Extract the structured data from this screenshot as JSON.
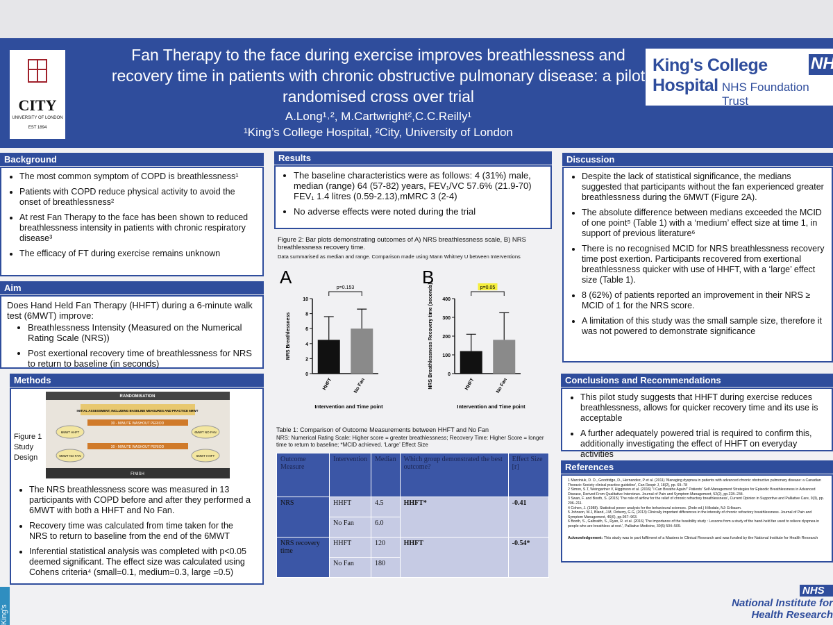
{
  "header": {
    "title": "Fan Therapy to the face during exercise improves breathlessness and recovery time in patients with chronic obstructive pulmonary disease: a pilot randomised cross over trial",
    "authors": "A.Long¹˒², M.Cartwright²,C.C.Reilly¹",
    "affiliations": "¹King’s College Hospital, ²City, University of London"
  },
  "logos": {
    "city": "CITY",
    "city_sub": "UNIVERSITY OF LONDON",
    "city_est": "EST 1894",
    "kch": "King's College Hospital",
    "nhs": "NHS",
    "kch_trust": "NHS Foundation Trust",
    "nihr_nhs": "NHS",
    "nihr": "National Institute for Health Research",
    "side": "King's"
  },
  "background": {
    "heading": "Background",
    "bullets": [
      "The most common symptom of COPD is breathlessness¹",
      "Patients with COPD reduce physical activity to avoid the onset of breathlessness²",
      "At rest Fan Therapy to the face has been shown to reduced breathlessness intensity in patients with chronic respiratory disease³",
      "The efficacy of FT during exercise remains unknown"
    ]
  },
  "aim": {
    "heading": "Aim",
    "question": "Does Hand Held Fan Therapy (HHFT) during a 6-minute walk test (6MWT) improve:",
    "bullets": [
      "Breathlessness Intensity (Measured on the Numerical Rating Scale (NRS))",
      "Post exertional recovery time of breathlessness for NRS to return to baseline (in seconds)"
    ]
  },
  "methods": {
    "heading": "Methods",
    "figure_label": "Figure 1 Study Design",
    "diagram": {
      "top": "RANDOMISATION",
      "initial": "INITIAL ASSESSMENT, INCLUDING BASELINE MEASURES AND PRACTICE 6MWT",
      "washout_1": "30 - MINUTE WASHOUT PERIOD",
      "washout_2": "30 - MINUTE WASHOUT PERIOD",
      "finish": "FINISH",
      "left_top": "6MWT HHFT",
      "left_bottom": "6MWT NO FAN",
      "right_top": "6MWT NO FAN",
      "right_bottom": "6MWT HHFT"
    },
    "bullets": [
      "The NRS breathlessness score was measured in 13 participants with COPD before and after they performed a 6MWT with both a HHFT and No Fan.",
      "Recovery time was calculated from time taken for the NRS to return to baseline from the end of the 6MWT",
      "Inferential statistical analysis was completed with  p<0.05 deemed significant.  The effect size was calculated using Cohens criteria⁴ (small=0.1, medium=0.3, large =0.5)"
    ]
  },
  "results": {
    "heading": "Results",
    "bullets": [
      "The baseline characteristics were as follows: 4 (31%) male, median (range) 64 (57-82) years, FEV₁/VC 57.6% (21.9-70) FEV₁ 1.4 litres (0.59-2.13),mMRC 3 (2-4)",
      "No adverse effects were noted during the trial"
    ]
  },
  "figure2": {
    "caption": "Figure 2: Bar plots demonstrating outcomes of A) NRS breathlessness scale, B) NRS breathlessness recovery time.",
    "note": "Data summarised as median and range. Comparison made using Mann Whitney U between Interventions"
  },
  "chart_data": [
    {
      "type": "bar",
      "panel": "A",
      "ylabel": "NRS Breathlessness",
      "xlabel": "Intervention and Time point",
      "categories": [
        "HHFT",
        "No Fan"
      ],
      "values": [
        4.5,
        6.0
      ],
      "upper": [
        7.6,
        8.6
      ],
      "colors": [
        "#111111",
        "#8a8a8a"
      ],
      "ylim": [
        0,
        10
      ],
      "yticks": [
        0,
        2,
        4,
        6,
        8,
        10
      ],
      "annotation": "p=0.153",
      "annotation_highlight": false
    },
    {
      "type": "bar",
      "panel": "B",
      "ylabel": "NRS Breathlessness Recovery time (seconds)",
      "xlabel": "Intervention and Time point",
      "categories": [
        "HHFT",
        "No Fan"
      ],
      "values": [
        120,
        180
      ],
      "upper": [
        210,
        325
      ],
      "colors": [
        "#111111",
        "#8a8a8a"
      ],
      "ylim": [
        0,
        400
      ],
      "yticks": [
        0,
        100,
        200,
        300,
        400
      ],
      "annotation": "p=0.05",
      "annotation_highlight": true
    }
  ],
  "table1": {
    "caption": "Table 1: Comparison of Outcome Measurements between HHFT and No Fan",
    "note": "NRS: Numerical Rating Scale: Higher score = greater breathlessness; Recovery Time: Higher Score = longer time to return to baseline;  *MCID achieved. ‘Large’ Effect Size",
    "columns": [
      "Outcome Measure",
      "Intervention",
      "Median",
      "Which group demonstrated the best outcome?",
      "Effect Size [r]"
    ],
    "groups": [
      {
        "measure": "NRS",
        "rows": [
          {
            "intervention": "HHFT",
            "median": "4.5"
          },
          {
            "intervention": "No Fan",
            "median": "6.0"
          }
        ],
        "best": "HHFT*",
        "effect": "-0.41"
      },
      {
        "measure": "NRS recovery time",
        "rows": [
          {
            "intervention": "HHFT",
            "median": "120"
          },
          {
            "intervention": "No Fan",
            "median": "180"
          }
        ],
        "best": "HHFT",
        "effect": "-0.54*"
      }
    ]
  },
  "discussion": {
    "heading": "Discussion",
    "bullets": [
      "Despite the lack of statistical significance, the medians suggested that participants without the fan experienced greater breathlessness during the 6MWT (Figure 2A).",
      "The absolute difference between medians exceeded the MCID of one point⁵ (Table 1) with a ‘medium’ effect size at time 1, in support of previous literature⁶",
      "There is no recognised MCID for NRS breathlessness recovery time post exertion.  Participants recovered from exertional breathlessness quicker with use of HHFT, with a ‘large’ effect size (Table 1).",
      "8 (62%) of patients reported an improvement in their NRS ≥ MCID of 1 for the NRS score.",
      "A limitation of this study was the small sample size, therefore it was not powered to demonstrate significance"
    ]
  },
  "conclusions": {
    "heading": "Conclusions and  Recommendations",
    "bullets": [
      "This pilot study suggests that HHFT during exercise reduces breathlessness, allows for quicker recovery time and its use is acceptable",
      "A further adequately powered trial is required to confirm this, additionally investigating the effect of HHFT on everyday activities"
    ]
  },
  "references": {
    "heading": "References",
    "items": [
      "1 Marciniuk, D. D., Goodridge, D., Hernandez, P et al. (2011) 'Managing dyspnea in patients with advanced chronic obstructive pulmonary disease: a Canadian Thoracic Society clinical practice guideline', Can Respir J, 18(2), pp. 69–78",
      "2 Simon, S.T, Weingartner V, Higginson et al. (2016) \"I Can Breathe Again!\" Patients' Self-Management Strategies for Episodic Breathlessness in Advanced Disease, Derived From Qualitative Interviews. Journal of Pain and Symptom Management, 52(2), pp.228–234.",
      "3 Swan, F. and Booth, S. (2015) 'The role of airflow for the relief of chronic refractory breathlessness', Current Opinion in Supportive and Palliative Care, 9(3), pp. 206–211.",
      "4 Cohen, J. (1988). Statistical power analysis for the behavioural sciences.  (2nde ed.) Hillsdale, NJ: Erlbaum.",
      "5 Johnson, M.J, Bland, J.M, Oxberry, G.G, (2013) Clinically important differences in the intensity of chronic refractory breathlessness. Journal of Pain and Symptom Management, 46(6), pp.957–963.",
      "6 Booth, S., Galbraith, S., Ryan, R. et al. (2016) 'The importance of the feasibility study : Lessons from a study of the hand-held fan used to relieve dyspnea in people who are breathless at rest.', Palliative Medicine, 30(5) 504–509."
    ],
    "ack_label": "Acknowledgement:",
    "ack": "This study was in part fulfilment of a Masters in Clinical Research and was funded  by the National Institute for Health Research"
  }
}
